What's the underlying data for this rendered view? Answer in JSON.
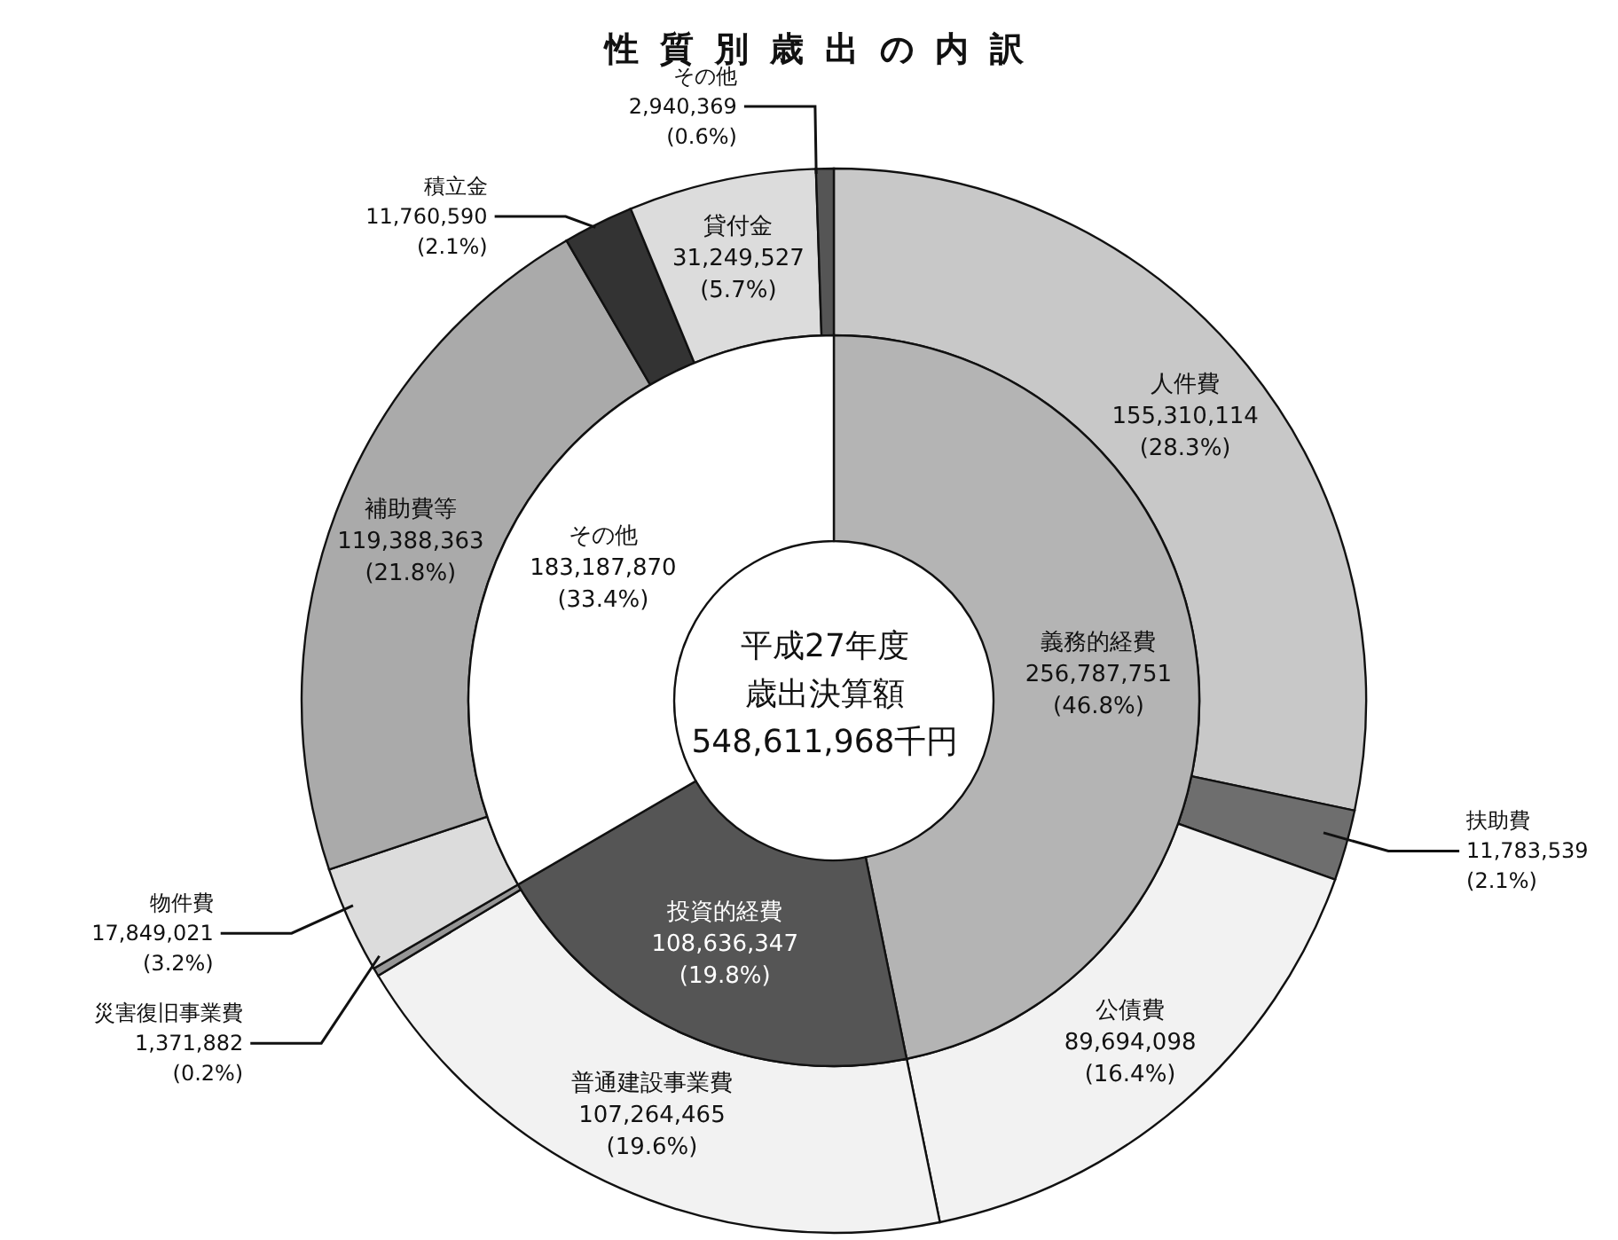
{
  "chart_data": [
    {
      "type": "donut",
      "title": "性質別歳出の内訳",
      "categories": [
        "人件費",
        "扶助費",
        "公債費",
        "普通建設事業費",
        "災害復旧事業費",
        "物件費",
        "補助費等",
        "積立金",
        "貸付金",
        "その他"
      ],
      "values": [
        155310114,
        11783539,
        89694098,
        107264465,
        1371882,
        17849021,
        119388363,
        11760590,
        31249527,
        2940369
      ],
      "colors": [
        "#c8c8c8",
        "#6e6e6e",
        "#f2f2f2",
        "#f2f2f2",
        "#969696",
        "#dcdcdc",
        "#aaaaaa",
        "#333333",
        "#dcdcdc",
        "#555555"
      ],
      "value_labels": [
        "155,310,114\n(28.3%)",
        "11,783,539\n(2.1%)",
        "89,694,098\n(16.4%)",
        "107,264,465\n(19.6%)",
        "1,371,882\n(0.2%)",
        "17,849,021\n(3.2%)",
        "119,388,363\n(21.8%)",
        "11,760,590\n(2.1%)",
        "31,249,527\n(5.7%)",
        "2,940,369\n(0.6%)"
      ]
    },
    {
      "type": "donut",
      "categories": [
        "義務的経費",
        "投資的経費",
        "その他"
      ],
      "values": [
        256787751,
        108636347,
        183187870
      ],
      "colors": [
        "#b4b4b4",
        "#555555",
        "#ffffff"
      ],
      "value_labels": [
        "256,787,751\n(46.8%)",
        "108,636,347\n(19.8%)",
        "183,187,870\n(33.4%)"
      ],
      "annotations": [
        "平成27年度",
        "歳出決算額",
        "548,611,968千円"
      ]
    }
  ]
}
